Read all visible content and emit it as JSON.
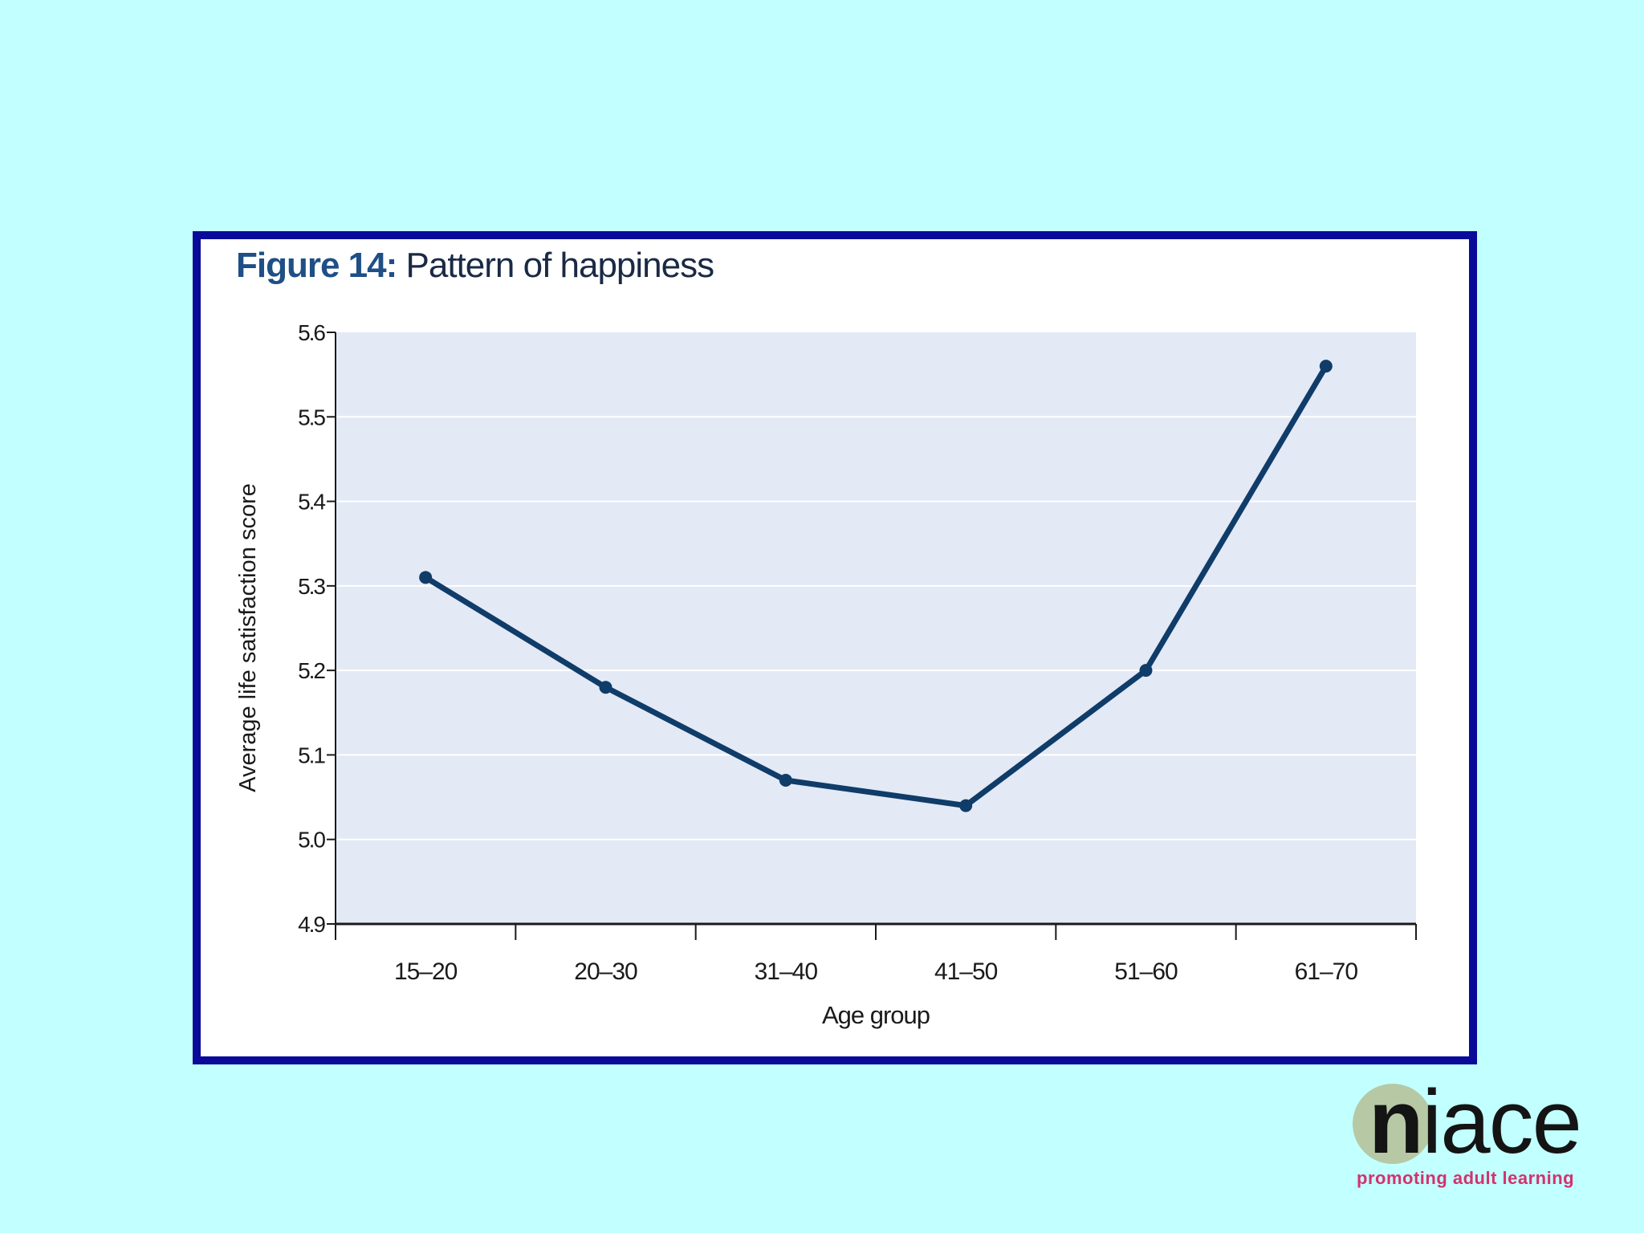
{
  "colors": {
    "background": "#c2ffff",
    "frame": "#0a0a9a",
    "plot_area": "#e3e9f5",
    "line": "#0f3c69",
    "title_label": "#1e4f86",
    "logo_tagline": "#d2326e"
  },
  "chart_data": {
    "type": "line",
    "title_label": "Figure 14:",
    "title": "Pattern of happiness",
    "xlabel": "Age group",
    "ylabel": "Average life satisfaction score",
    "categories": [
      "15–20",
      "20–30",
      "31–40",
      "41–50",
      "51–60",
      "61–70"
    ],
    "series": [
      {
        "values": [
          5.31,
          5.18,
          5.07,
          5.04,
          5.2,
          5.56
        ]
      }
    ],
    "ylim": [
      4.9,
      5.6
    ],
    "yticks": [
      "4.9",
      "5.0",
      "5.1",
      "5.2",
      "5.3",
      "5.4",
      "5.5",
      "5.6"
    ],
    "grid": "horizontal",
    "legend": "none"
  },
  "logo": {
    "word_n": "n",
    "word_rest": "iace",
    "tagline": "promoting adult learning"
  }
}
